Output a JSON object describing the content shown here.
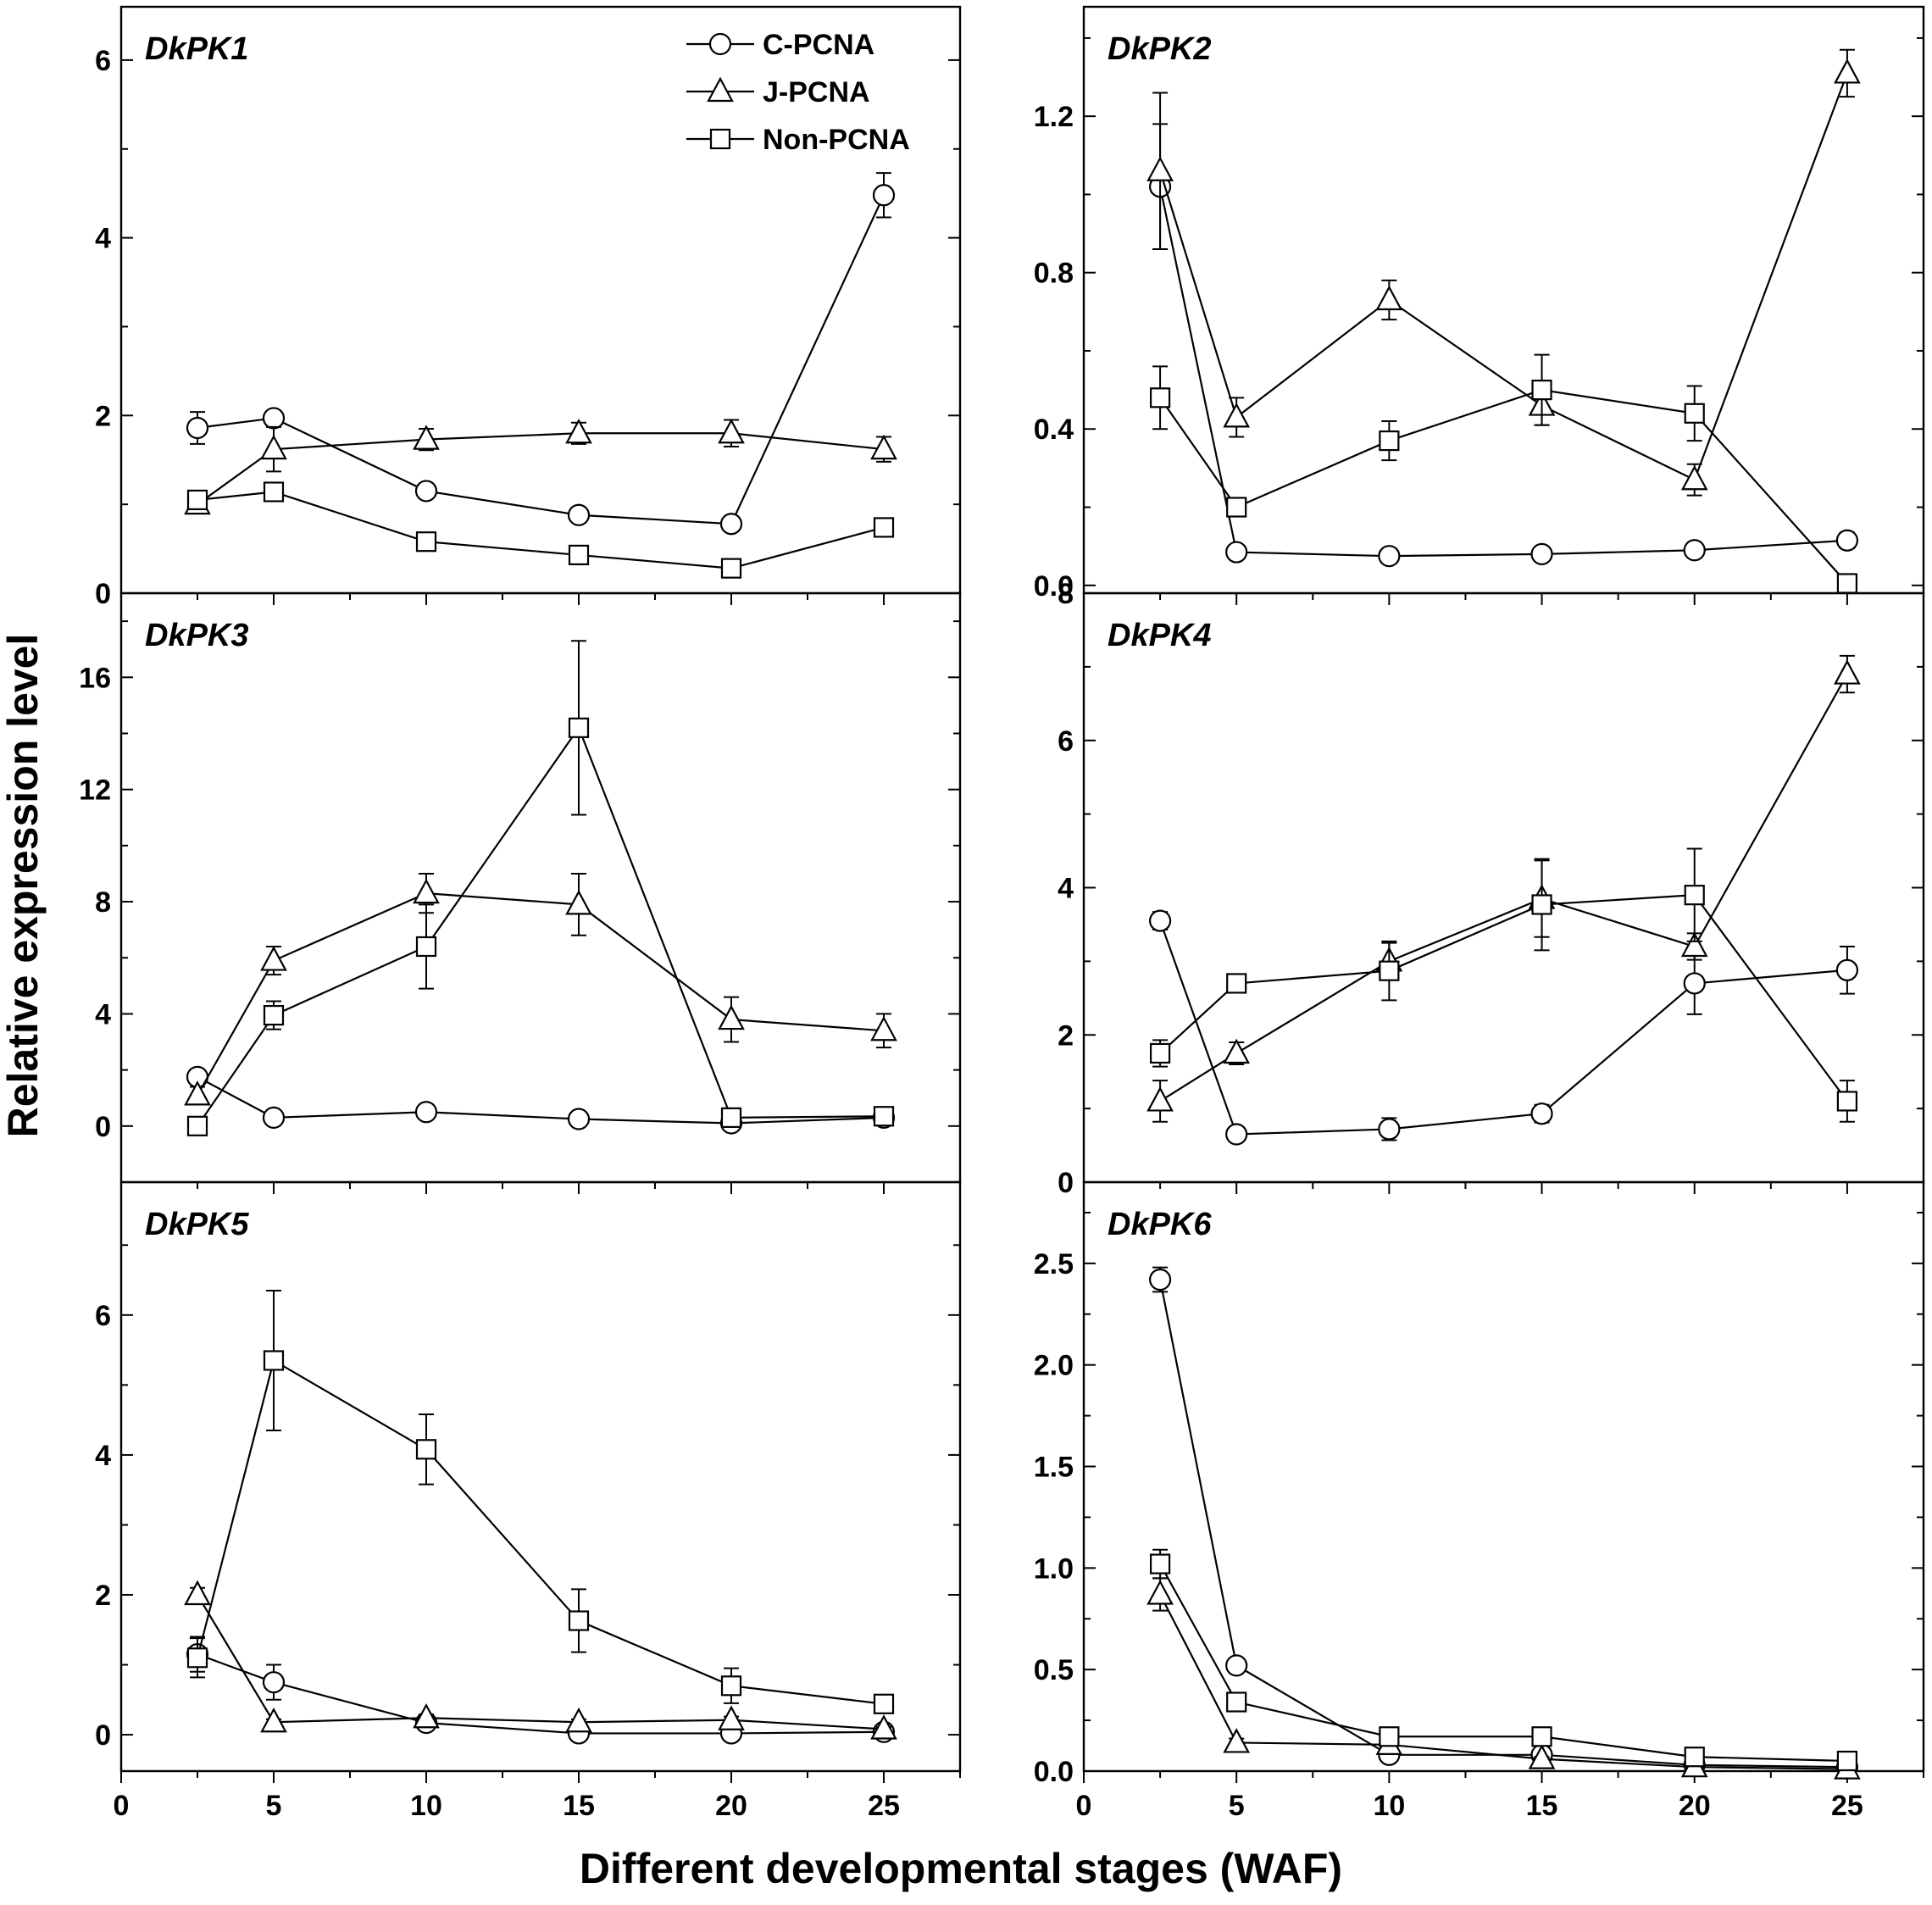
{
  "figure": {
    "ylabel": "Relative expression level",
    "xlabel": "Different developmental stages (WAF)"
  },
  "chart_data": [
    {
      "type": "line",
      "title": "DkPK1",
      "x": [
        2.5,
        5,
        10,
        15,
        20,
        25
      ],
      "xlim": [
        0,
        27.5
      ],
      "xticks": [
        0,
        5,
        10,
        15,
        20,
        25
      ],
      "ylim": [
        0,
        6.6
      ],
      "yticks": [
        0,
        2,
        4,
        6
      ],
      "series": [
        {
          "name": "C-PCNA",
          "marker": "circle",
          "values": [
            1.86,
            1.97,
            1.15,
            0.88,
            0.78,
            4.48
          ],
          "errors": [
            0.18,
            0.08,
            0.07,
            0.06,
            0.05,
            0.25
          ]
        },
        {
          "name": "J-PCNA",
          "marker": "triangle",
          "values": [
            1.0,
            1.62,
            1.73,
            1.8,
            1.8,
            1.62
          ],
          "errors": [
            0.1,
            0.25,
            0.12,
            0.12,
            0.15,
            0.14
          ]
        },
        {
          "name": "Non-PCNA",
          "marker": "square",
          "values": [
            1.05,
            1.14,
            0.58,
            0.43,
            0.28,
            0.74
          ],
          "errors": [
            0.08,
            0.08,
            0.05,
            0.06,
            0.05,
            0.06
          ]
        }
      ]
    },
    {
      "type": "line",
      "title": "DkPK2",
      "x": [
        2.5,
        5,
        10,
        15,
        20,
        25
      ],
      "xlim": [
        0,
        27.5
      ],
      "xticks": [
        0,
        5,
        10,
        15,
        20,
        25
      ],
      "ylim": [
        -0.02,
        1.48
      ],
      "yticks": [
        0.0,
        0.4,
        0.8,
        1.2
      ],
      "series": [
        {
          "name": "C-PCNA",
          "marker": "circle",
          "values": [
            1.02,
            0.085,
            0.075,
            0.08,
            0.09,
            0.115
          ],
          "errors": [
            0.16,
            0.015,
            0.015,
            0.015,
            0.015,
            0.02
          ]
        },
        {
          "name": "J-PCNA",
          "marker": "triangle",
          "values": [
            1.06,
            0.43,
            0.73,
            0.46,
            0.27,
            1.31
          ],
          "errors": [
            0.2,
            0.05,
            0.05,
            0.05,
            0.04,
            0.06
          ]
        },
        {
          "name": "Non-PCNA",
          "marker": "square",
          "values": [
            0.48,
            0.2,
            0.37,
            0.5,
            0.44,
            0.005
          ],
          "errors": [
            0.08,
            0.02,
            0.05,
            0.09,
            0.07,
            0.02
          ]
        }
      ]
    },
    {
      "type": "line",
      "title": "DkPK3",
      "x": [
        2.5,
        5,
        10,
        15,
        20,
        25
      ],
      "xlim": [
        0,
        27.5
      ],
      "xticks": [
        0,
        5,
        10,
        15,
        20,
        25
      ],
      "ylim": [
        -2.0,
        19.0
      ],
      "yticks": [
        0,
        4,
        8,
        12,
        16
      ],
      "series": [
        {
          "name": "C-PCNA",
          "marker": "circle",
          "values": [
            1.75,
            0.3,
            0.5,
            0.25,
            0.1,
            0.3
          ],
          "errors": [
            0.2,
            0.1,
            0.1,
            0.1,
            0.1,
            0.1
          ]
        },
        {
          "name": "J-PCNA",
          "marker": "triangle",
          "values": [
            1.1,
            5.9,
            8.3,
            7.9,
            3.8,
            3.4
          ],
          "errors": [
            0.3,
            0.5,
            0.7,
            1.1,
            0.8,
            0.6
          ]
        },
        {
          "name": "Non-PCNA",
          "marker": "square",
          "values": [
            0.0,
            3.95,
            6.4,
            14.2,
            0.3,
            0.35
          ],
          "errors": [
            0.2,
            0.5,
            1.5,
            3.1,
            0.2,
            0.2
          ]
        }
      ]
    },
    {
      "type": "line",
      "title": "DkPK4",
      "x": [
        2.5,
        5,
        10,
        15,
        20,
        25
      ],
      "xlim": [
        0,
        27.5
      ],
      "xticks": [
        0,
        5,
        10,
        15,
        20,
        25
      ],
      "ylim": [
        0,
        8
      ],
      "yticks": [
        0,
        2,
        4,
        6,
        8
      ],
      "series": [
        {
          "name": "C-PCNA",
          "marker": "circle",
          "values": [
            3.55,
            0.65,
            0.72,
            0.93,
            2.7,
            2.88
          ],
          "errors": [
            0.12,
            0.05,
            0.15,
            0.12,
            0.42,
            0.32
          ]
        },
        {
          "name": "J-PCNA",
          "marker": "triangle",
          "values": [
            1.1,
            1.75,
            3.0,
            3.85,
            3.2,
            6.9
          ],
          "errors": [
            0.28,
            0.15,
            0.25,
            0.52,
            0.18,
            0.25
          ]
        },
        {
          "name": "Non-PCNA",
          "marker": "square",
          "values": [
            1.75,
            2.7,
            2.87,
            3.77,
            3.9,
            1.1
          ],
          "errors": [
            0.18,
            0.12,
            0.4,
            0.62,
            0.63,
            0.28
          ]
        }
      ]
    },
    {
      "type": "line",
      "title": "DkPK5",
      "x": [
        2.5,
        5,
        10,
        15,
        20,
        25
      ],
      "xlim": [
        0,
        27.5
      ],
      "xticks": [
        0,
        5,
        10,
        15,
        20,
        25
      ],
      "ylim": [
        -0.52,
        7.9
      ],
      "yticks": [
        0,
        2,
        4,
        6
      ],
      "series": [
        {
          "name": "C-PCNA",
          "marker": "circle",
          "values": [
            1.15,
            0.75,
            0.17,
            0.02,
            0.02,
            0.04
          ],
          "errors": [
            0.25,
            0.25,
            0.08,
            0.03,
            0.03,
            0.03
          ]
        },
        {
          "name": "J-PCNA",
          "marker": "triangle",
          "values": [
            2.0,
            0.18,
            0.24,
            0.18,
            0.21,
            0.08
          ],
          "errors": [
            0.1,
            0.04,
            0.05,
            0.04,
            0.05,
            0.03
          ]
        },
        {
          "name": "Non-PCNA",
          "marker": "square",
          "values": [
            1.1,
            5.35,
            4.08,
            1.63,
            0.7,
            0.44
          ],
          "errors": [
            0.28,
            1.0,
            0.5,
            0.45,
            0.25,
            0.07
          ]
        }
      ]
    },
    {
      "type": "line",
      "title": "DkPK6",
      "x": [
        2.5,
        5,
        10,
        15,
        20,
        25
      ],
      "xlim": [
        0,
        27.5
      ],
      "xticks": [
        0,
        5,
        10,
        15,
        20,
        25
      ],
      "ylim": [
        0,
        2.9
      ],
      "yticks": [
        0.0,
        0.5,
        1.0,
        1.5,
        2.0,
        2.5
      ],
      "series": [
        {
          "name": "C-PCNA",
          "marker": "circle",
          "values": [
            2.42,
            0.52,
            0.08,
            0.08,
            0.03,
            0.02
          ],
          "errors": [
            0.06,
            0.02,
            0.01,
            0.01,
            0.01,
            0.01
          ]
        },
        {
          "name": "J-PCNA",
          "marker": "triangle",
          "values": [
            0.87,
            0.14,
            0.13,
            0.06,
            0.02,
            0.01
          ],
          "errors": [
            0.08,
            0.02,
            0.02,
            0.01,
            0.01,
            0.01
          ]
        },
        {
          "name": "Non-PCNA",
          "marker": "square",
          "values": [
            1.02,
            0.34,
            0.17,
            0.17,
            0.07,
            0.05
          ],
          "errors": [
            0.07,
            0.03,
            0.03,
            0.03,
            0.02,
            0.01
          ]
        }
      ]
    }
  ]
}
